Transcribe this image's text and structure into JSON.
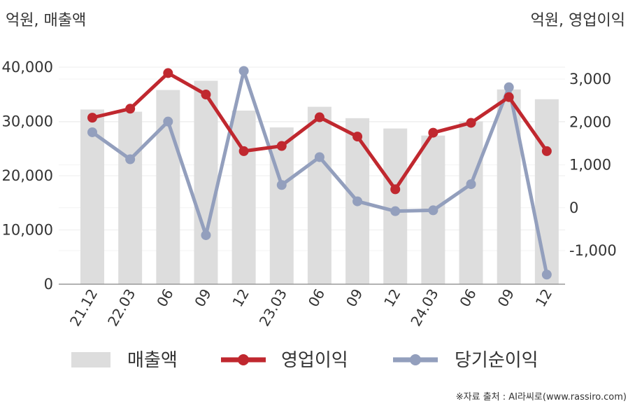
{
  "chart_data": {
    "type": "bar+line",
    "left_axis_title": "억원, 매출액",
    "right_axis_title": "억원, 영업이익",
    "categories": [
      "21.12",
      "22.03",
      "06",
      "09",
      "12",
      "23.03",
      "06",
      "09",
      "12",
      "24.03",
      "06",
      "09",
      "12"
    ],
    "left_axis": {
      "min": 0,
      "max": 40000,
      "ticks": [
        0,
        10000,
        20000,
        30000,
        40000
      ],
      "tick_labels": [
        "0",
        "10,000",
        "20,000",
        "30,000",
        "40,000"
      ]
    },
    "right_axis": {
      "min": -1800,
      "max": 3300,
      "ticks": [
        -1000,
        0,
        1000,
        2000,
        3000
      ],
      "tick_labels": [
        "-1,000",
        "0",
        "1,000",
        "2,000",
        "3,000"
      ]
    },
    "series": [
      {
        "name": "매출액",
        "kind": "bar",
        "axis": "left",
        "color": "#dddddd",
        "values": [
          32200,
          31800,
          35800,
          37500,
          32000,
          28900,
          32700,
          30600,
          28700,
          27400,
          30000,
          35900,
          34100
        ]
      },
      {
        "name": "영업이익",
        "kind": "line",
        "axis": "right",
        "color": "#c0282f",
        "values": [
          2100,
          2310,
          3140,
          2640,
          1320,
          1440,
          2110,
          1660,
          430,
          1750,
          1980,
          2580,
          1320
        ]
      },
      {
        "name": "당기순이익",
        "kind": "line",
        "axis": "right",
        "color": "#939fbd",
        "values": [
          1760,
          1130,
          2010,
          -640,
          3190,
          530,
          1180,
          150,
          -80,
          -60,
          550,
          2810,
          -1560
        ]
      }
    ],
    "legend_position": "bottom",
    "source": "※자료 출처 : AI라씨로(www.rassiro.com)"
  }
}
